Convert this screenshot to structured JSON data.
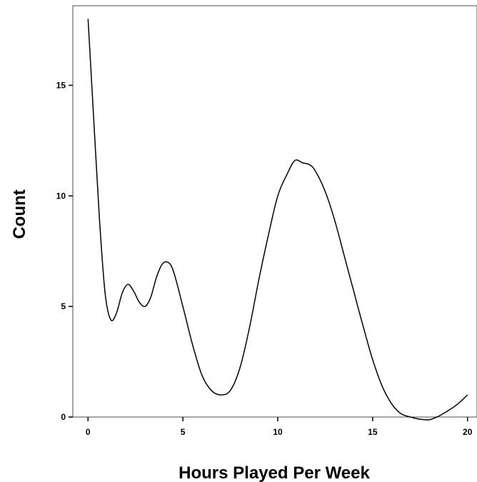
{
  "chart_data": {
    "type": "line",
    "title": "",
    "xlabel": "Hours Played Per Week",
    "ylabel": "Count",
    "xlim": [
      -0.8,
      20.5
    ],
    "ylim": [
      0,
      18.6
    ],
    "xticks": [
      0,
      5,
      10,
      15,
      20
    ],
    "yticks": [
      0,
      5,
      10,
      15
    ],
    "grid": false,
    "series": [
      {
        "values_x": [
          0,
          0.3,
          0.6,
          0.9,
          1.2,
          1.5,
          1.8,
          2.1,
          2.4,
          2.7,
          3.0,
          3.3,
          3.6,
          3.9,
          4.2,
          4.5,
          5.0,
          5.5,
          6.0,
          6.5,
          7.0,
          7.5,
          8.0,
          8.5,
          9.0,
          9.5,
          10.0,
          10.5,
          10.9,
          11.3,
          11.7,
          12.0,
          12.5,
          13.0,
          13.5,
          14.0,
          14.5,
          15.0,
          15.5,
          16.0,
          16.5,
          17.0,
          17.5,
          18.0,
          18.5,
          19.0,
          19.5,
          20.0
        ],
        "values_y": [
          18.0,
          13.5,
          9.0,
          5.6,
          4.4,
          4.7,
          5.6,
          6.0,
          5.7,
          5.2,
          5.0,
          5.4,
          6.3,
          6.9,
          7.0,
          6.6,
          5.0,
          3.3,
          1.9,
          1.2,
          1.0,
          1.2,
          2.2,
          4.0,
          6.2,
          8.2,
          10.0,
          11.0,
          11.6,
          11.5,
          11.4,
          11.1,
          10.2,
          8.9,
          7.3,
          5.7,
          4.1,
          2.6,
          1.4,
          0.6,
          0.15,
          0.0,
          -0.1,
          -0.12,
          0.05,
          0.3,
          0.6,
          1.0
        ]
      }
    ]
  }
}
